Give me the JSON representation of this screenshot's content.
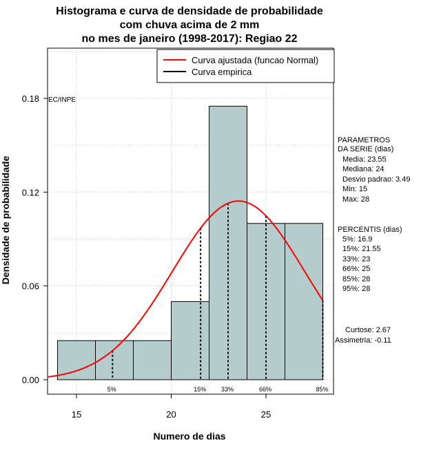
{
  "chart_data": {
    "type": "bar",
    "title": [
      "Histograma e curva de densidade de probabilidade",
      "com chuva acima de 2 mm",
      "no mes de janeiro (1998-2017): Regiao 22"
    ],
    "xlabel": "Numero de dias",
    "ylabel": "Densidade de probabilidade",
    "xlim": [
      13.5,
      28.5
    ],
    "ylim": [
      0,
      0.2
    ],
    "x_ticks": [
      "15",
      "20",
      "25"
    ],
    "x_tick_values": [
      15,
      20,
      25
    ],
    "y_ticks": [
      "0.00",
      "0.06",
      "0.12",
      "0.18"
    ],
    "y_tick_values": [
      0,
      0.06,
      0.12,
      0.18
    ],
    "grid": true,
    "bin_edges": [
      14,
      16,
      18,
      20,
      22,
      24,
      26,
      28
    ],
    "values": [
      0.025,
      0.025,
      0.025,
      0.05,
      0.175,
      0.1,
      0.1
    ],
    "bar_color": "#b4cccc",
    "normal_fit": {
      "mean": 23.55,
      "sd": 3.49,
      "color": "#ff0000",
      "x_from": 13.5,
      "x_to": 28
    },
    "legend": [
      {
        "label": "Curva ajustada (funcao Normal)",
        "color": "#ff0000"
      },
      {
        "label": "Curva empirica",
        "color": "#000000"
      }
    ],
    "watermark": "EC/INPE",
    "percentile_markers": [
      {
        "label": "5%",
        "x": 16.9
      },
      {
        "label": "15%",
        "x": 21.55
      },
      {
        "label": "33%",
        "x": 23
      },
      {
        "label": "66%",
        "x": 25
      },
      {
        "label": "85%",
        "x": 28
      }
    ],
    "parametros": {
      "heading": [
        "PARAMETROS",
        "DA SERIE (dias)"
      ],
      "lines": [
        "Media: 23.55",
        "Mediana: 24",
        "Desvio padrao: 3.49",
        "Min: 15",
        "Max: 28"
      ]
    },
    "percentis": {
      "heading": "PERCENTIS (dias)",
      "lines": [
        "5%: 16.9",
        "15%: 21.55",
        "33%: 23",
        "66%: 25",
        "85%: 28",
        "95%: 28"
      ]
    },
    "extra": [
      "Curtose: 2.67",
      "Assimetria: -0.11"
    ]
  }
}
